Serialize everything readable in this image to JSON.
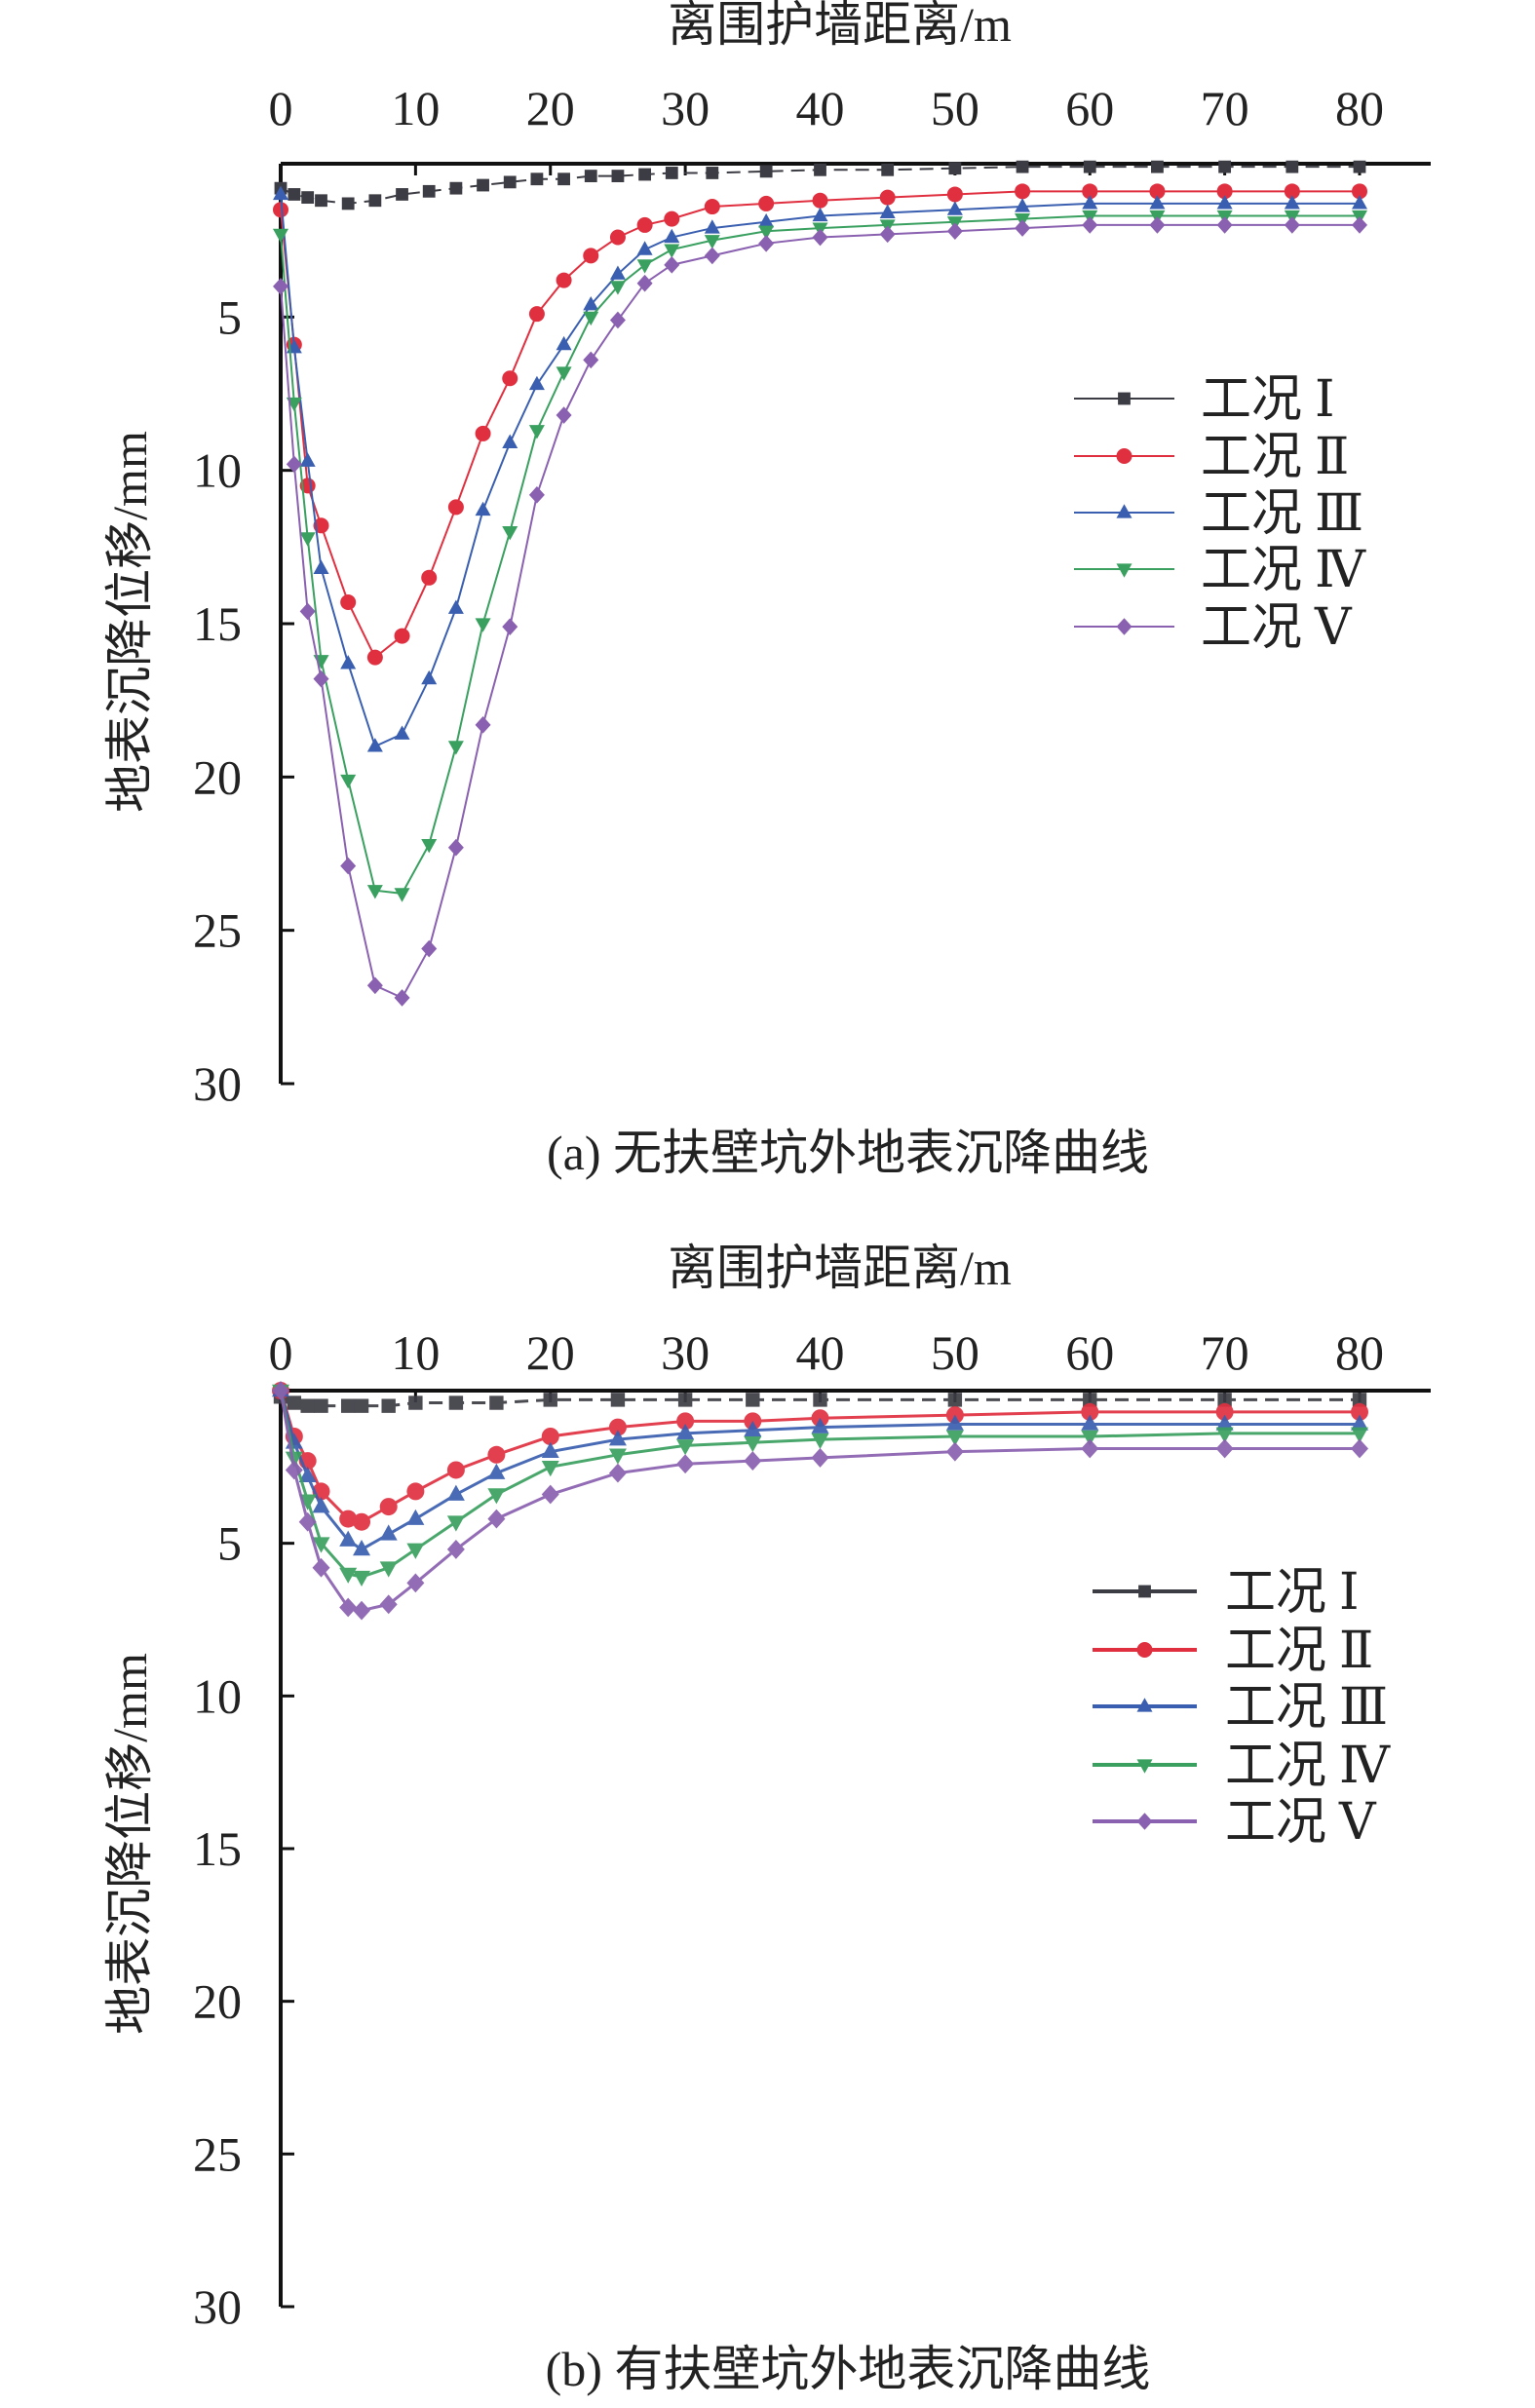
{
  "chart_data": [
    {
      "type": "line",
      "title": "(a) 无扶壁坑外地表沉降曲线",
      "xlabel": "离围护墙距离/m",
      "ylabel": "地表沉降位移/mm",
      "xlim": [
        0,
        80
      ],
      "ylim": [
        0,
        30
      ],
      "y_inverted": true,
      "x_axis_position": "top",
      "xticks": [
        "0",
        "10",
        "20",
        "30",
        "40",
        "50",
        "60",
        "70",
        "80"
      ],
      "yticks": [
        "5",
        "10",
        "15",
        "20",
        "25",
        "30"
      ],
      "legend_position": "right",
      "x": [
        0,
        1,
        2,
        3,
        5,
        7,
        9,
        11,
        13,
        15,
        17,
        19,
        21,
        23,
        25,
        27,
        29,
        32,
        36,
        40,
        45,
        50,
        55,
        60,
        65,
        70,
        75,
        80
      ],
      "series": [
        {
          "name": "工况 Ⅰ",
          "marker": "square",
          "color": "#3c3c44",
          "values": [
            0.8,
            1.0,
            1.1,
            1.2,
            1.3,
            1.2,
            1.0,
            0.9,
            0.8,
            0.7,
            0.6,
            0.5,
            0.5,
            0.4,
            0.4,
            0.35,
            0.3,
            0.3,
            0.25,
            0.2,
            0.2,
            0.15,
            0.1,
            0.1,
            0.1,
            0.1,
            0.1,
            0.1
          ]
        },
        {
          "name": "工况 Ⅱ",
          "marker": "circle",
          "color": "#e03040",
          "values": [
            1.5,
            5.9,
            10.5,
            11.8,
            14.3,
            16.1,
            15.4,
            13.5,
            11.2,
            8.8,
            7.0,
            4.9,
            3.8,
            3.0,
            2.4,
            2.0,
            1.8,
            1.4,
            1.3,
            1.2,
            1.1,
            1.0,
            0.9,
            0.9,
            0.9,
            0.9,
            0.9,
            0.9
          ]
        },
        {
          "name": "工况 Ⅲ",
          "marker": "triangle-up",
          "color": "#3a5fb0",
          "values": [
            1.0,
            6.0,
            9.7,
            13.2,
            16.3,
            19.0,
            18.6,
            16.8,
            14.5,
            11.3,
            9.1,
            7.2,
            5.9,
            4.6,
            3.6,
            2.8,
            2.4,
            2.1,
            1.9,
            1.7,
            1.6,
            1.5,
            1.4,
            1.3,
            1.3,
            1.3,
            1.3,
            1.3
          ]
        },
        {
          "name": "工况 Ⅳ",
          "marker": "triangle-down",
          "color": "#3aa060",
          "values": [
            2.3,
            7.8,
            12.2,
            16.2,
            20.1,
            23.7,
            23.8,
            22.2,
            19.0,
            15.0,
            12.0,
            8.7,
            6.8,
            5.0,
            4.0,
            3.3,
            2.8,
            2.5,
            2.2,
            2.1,
            2.0,
            1.9,
            1.8,
            1.7,
            1.7,
            1.7,
            1.7,
            1.7
          ]
        },
        {
          "name": "工况 Ⅴ",
          "marker": "diamond",
          "color": "#8a60b0",
          "values": [
            4.0,
            9.8,
            14.6,
            16.8,
            22.9,
            26.8,
            27.2,
            25.6,
            22.3,
            18.3,
            15.1,
            10.8,
            8.2,
            6.4,
            5.1,
            3.9,
            3.3,
            3.0,
            2.6,
            2.4,
            2.3,
            2.2,
            2.1,
            2.0,
            2.0,
            2.0,
            2.0,
            2.0
          ]
        }
      ]
    },
    {
      "type": "line",
      "title": "(b) 有扶壁坑外地表沉降曲线",
      "xlabel": "离围护墙距离/m",
      "ylabel": "地表沉降位移/mm",
      "xlim": [
        0,
        80
      ],
      "ylim": [
        0,
        30
      ],
      "y_inverted": true,
      "x_axis_position": "top",
      "xticks": [
        "0",
        "10",
        "20",
        "30",
        "40",
        "50",
        "60",
        "70",
        "80"
      ],
      "yticks": [
        "5",
        "10",
        "15",
        "20",
        "25",
        "30"
      ],
      "legend_position": "right",
      "x": [
        0,
        1,
        2,
        3,
        5,
        6,
        8,
        10,
        13,
        16,
        20,
        25,
        30,
        35,
        40,
        50,
        60,
        70,
        80
      ],
      "series": [
        {
          "name": "工况 Ⅰ",
          "marker": "square",
          "color": "#3c3c44",
          "values": [
            0.2,
            0.4,
            0.5,
            0.5,
            0.5,
            0.5,
            0.5,
            0.4,
            0.4,
            0.4,
            0.3,
            0.3,
            0.3,
            0.3,
            0.3,
            0.3,
            0.3,
            0.3,
            0.3
          ]
        },
        {
          "name": "工况 Ⅱ",
          "marker": "circle",
          "color": "#e03040",
          "values": [
            0,
            1.5,
            2.3,
            3.3,
            4.2,
            4.3,
            3.8,
            3.3,
            2.6,
            2.1,
            1.5,
            1.2,
            1.0,
            1.0,
            0.9,
            0.8,
            0.7,
            0.7,
            0.7
          ]
        },
        {
          "name": "工况 Ⅲ",
          "marker": "triangle-up",
          "color": "#3a5fb0",
          "values": [
            0,
            1.7,
            2.8,
            3.8,
            4.9,
            5.2,
            4.7,
            4.2,
            3.4,
            2.7,
            2.0,
            1.6,
            1.4,
            1.3,
            1.2,
            1.1,
            1.1,
            1.1,
            1.1
          ]
        },
        {
          "name": "工况 Ⅳ",
          "marker": "triangle-down",
          "color": "#3aa060",
          "values": [
            0,
            2.2,
            3.6,
            5.0,
            6.0,
            6.1,
            5.8,
            5.2,
            4.3,
            3.4,
            2.5,
            2.1,
            1.8,
            1.7,
            1.6,
            1.5,
            1.5,
            1.4,
            1.4
          ]
        },
        {
          "name": "工况 Ⅴ",
          "marker": "diamond",
          "color": "#8a60b0",
          "values": [
            0,
            2.6,
            4.3,
            5.8,
            7.1,
            7.2,
            7.0,
            6.3,
            5.2,
            4.2,
            3.4,
            2.7,
            2.4,
            2.3,
            2.2,
            2.0,
            1.9,
            1.9,
            1.9
          ]
        }
      ]
    }
  ]
}
